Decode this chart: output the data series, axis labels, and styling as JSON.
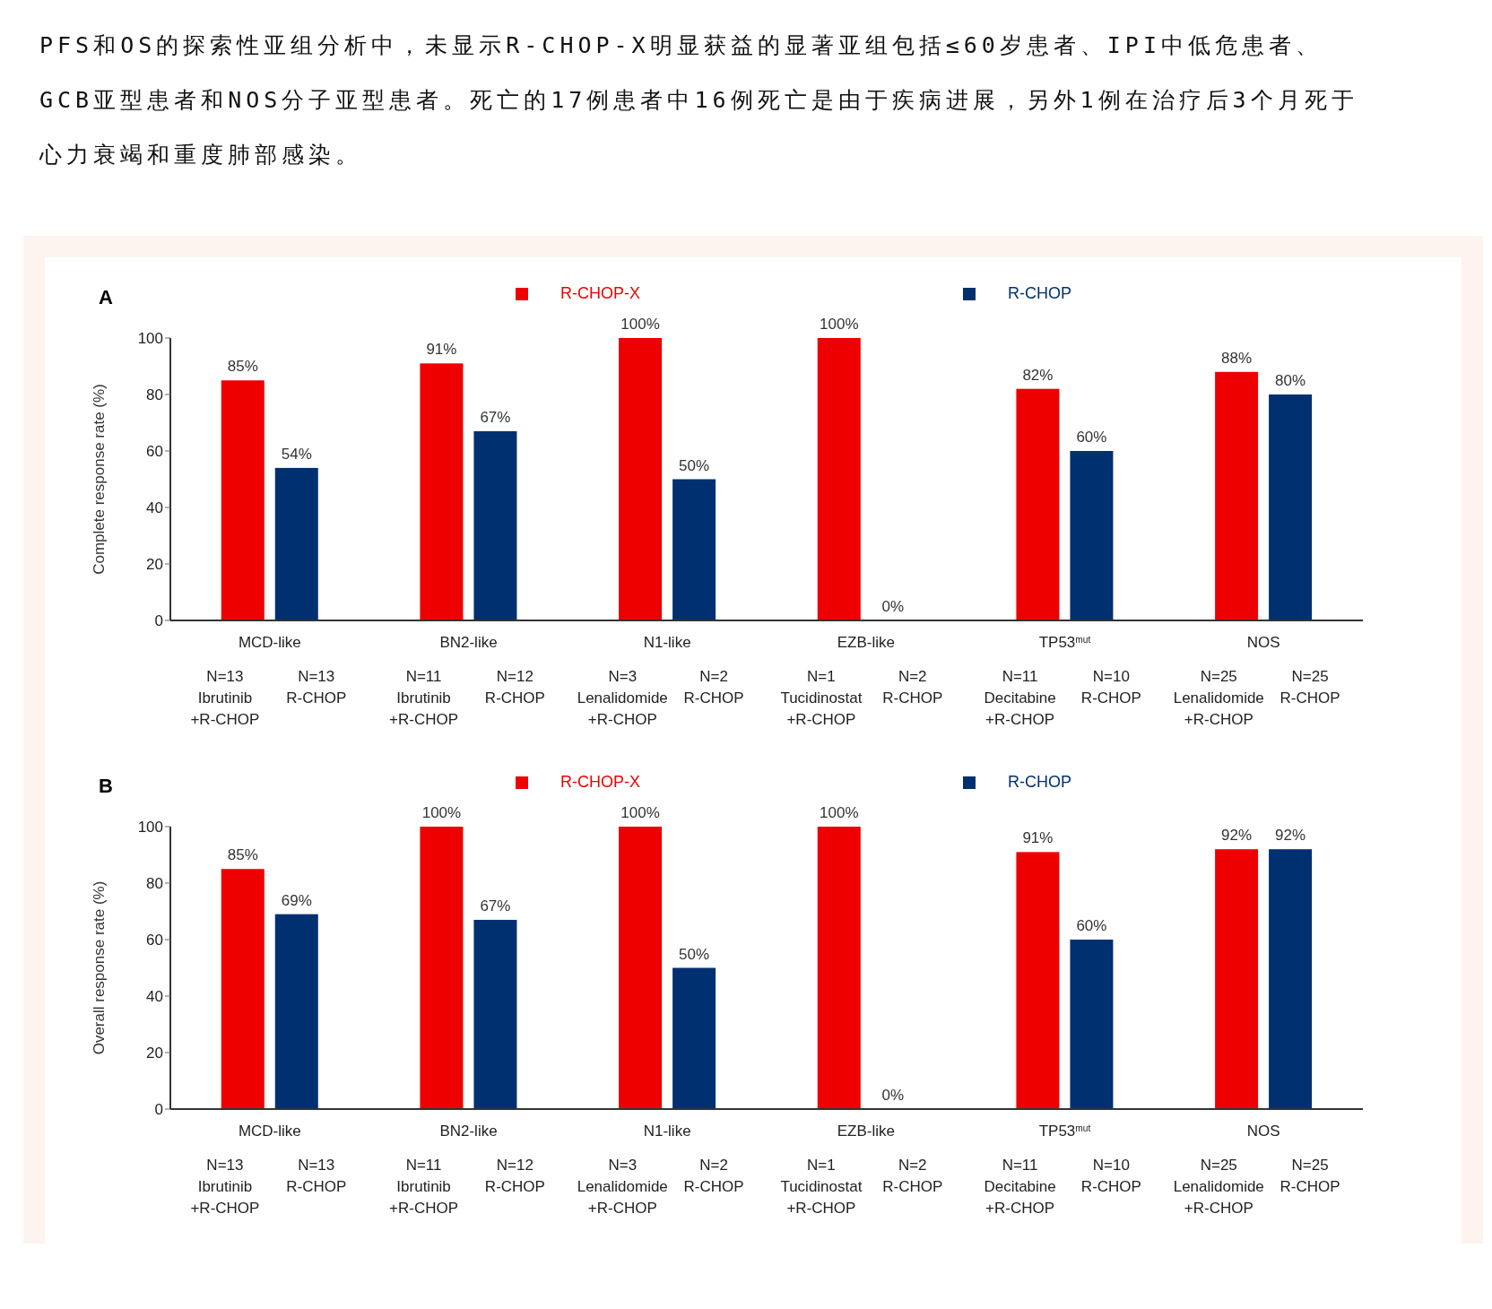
{
  "chart_data": [
    {
      "type": "bar",
      "title": "A",
      "subtitle": "PFS和OS的探索性亚组分析中，未显示R-CHOP-X明显获益的显著亚组包括≤60岁患者、IPI中低危患者、GCB亚型患者和NOS分子亚型患者。死亡的17例患者中16例死亡是由于疾病进展，另外1例在治疗后3个月死于心力衰竭和重度肺部感染。",
      "ylabel": "Complete response rate (%)",
      "categories": [
        "MCD-like",
        "BN2-like",
        "N1-like",
        "EZB-like",
        "TP53$^{mut}$",
        "NOS"
      ],
      "series": [
        {
          "name": "R-CHOP-X",
          "color": "#ee0000",
          "values": [
            85,
            91,
            100,
            100,
            82,
            88
          ],
          "value_labels": [
            "85%",
            "91%",
            "100%",
            "100%",
            "82%",
            "88%"
          ]
        },
        {
          "name": "R-CHOP",
          "color": "#003070",
          "values": [
            54,
            67,
            50,
            0,
            60,
            80
          ],
          "value_labels": [
            "54%",
            "67%",
            "50%",
            "0%",
            "60%",
            "80%"
          ]
        }
      ],
      "ylim": [
        0,
        100
      ],
      "yticks": [
        0,
        20,
        40,
        60,
        80,
        100
      ],
      "grid": false,
      "legend": "top",
      "annotations": [
        "N=13\nIbrutinib\n+R-CHOP",
        "N=13\n\nR-CHOP",
        "N=11\nIbrutinib\n+R-CHOP",
        "N=12\n\nR-CHOP",
        "N=3\nLenalidomide\n+R-CHOP",
        "N=2\n\nR-CHOP",
        "N=1\nTucidinostat\n+R-CHOP",
        "N=2\n\nR-CHOP",
        "N=11\nDecitabine\n+R-CHOP",
        "N=10\n\nR-CHOP",
        "N=25\nLenalidomide\n+R-CHOP",
        "N=25\n\nR-CHOP"
      ]
    },
    {
      "type": "bar",
      "title": "B",
      "ylabel": "Overall response rate (%)",
      "categories": [
        "MCD-like",
        "BN2-like",
        "N1-like",
        "EZB-like",
        "TP53$^{mut}$",
        "NOS"
      ],
      "series": [
        {
          "name": "R-CHOP-X",
          "color": "#ee0000",
          "values": [
            85,
            100,
            100,
            100,
            91,
            92
          ],
          "value_labels": [
            "85%",
            "100%",
            "100%",
            "100%",
            "91%",
            "92%"
          ]
        },
        {
          "name": "R-CHOP",
          "color": "#003070",
          "values": [
            69,
            67,
            50,
            0,
            60,
            92
          ],
          "value_labels": [
            "69%",
            "67%",
            "50%",
            "0%",
            "60%",
            "92%"
          ]
        }
      ],
      "ylim": [
        0,
        100
      ],
      "yticks": [
        0,
        20,
        40,
        60,
        80,
        100
      ],
      "grid": false,
      "legend": "top",
      "annotations": [
        "N=13\nIbrutinib\n+R-CHOP",
        "N=13\n\nR-CHOP",
        "N=11\nIbrutinib\n+R-CHOP",
        "N=12\n\nR-CHOP",
        "N=3\nLenalidomide\n+R-CHOP",
        "N=2\n\nR-CHOP",
        "N=1\nTucidinostat\n+R-CHOP",
        "N=2\n\nR-CHOP",
        "N=11\nDecitabine\n+R-CHOP",
        "N=10\n\nR-CHOP",
        "N=25\nLenalidomide\n+R-CHOP",
        "N=25\n\nR-CHOP"
      ]
    }
  ]
}
